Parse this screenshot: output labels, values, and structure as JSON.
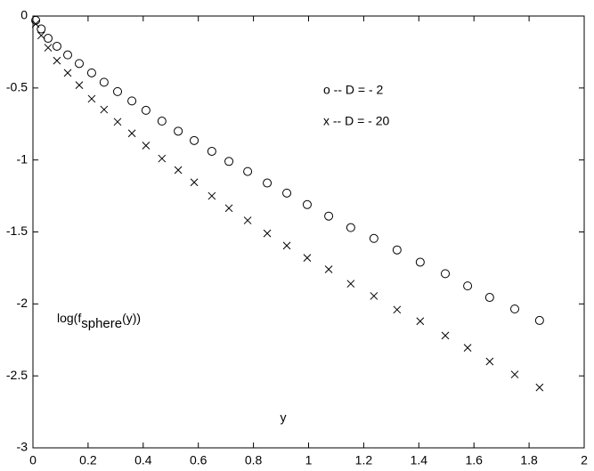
{
  "chart_data": {
    "type": "scatter",
    "x": [
      0.01,
      0.03,
      0.055,
      0.087,
      0.126,
      0.168,
      0.213,
      0.258,
      0.307,
      0.359,
      0.41,
      0.468,
      0.527,
      0.585,
      0.649,
      0.711,
      0.779,
      0.85,
      0.921,
      0.995,
      1.073,
      1.153,
      1.237,
      1.321,
      1.405,
      1.496,
      1.577,
      1.657,
      1.748,
      1.838
    ],
    "series": [
      {
        "marker": "o",
        "color": "#000000",
        "values": [
          -0.03,
          -0.09,
          -0.155,
          -0.21,
          -0.27,
          -0.33,
          -0.395,
          -0.46,
          -0.525,
          -0.59,
          -0.655,
          -0.73,
          -0.8,
          -0.865,
          -0.94,
          -1.01,
          -1.08,
          -1.16,
          -1.23,
          -1.31,
          -1.39,
          -1.47,
          -1.545,
          -1.625,
          -1.71,
          -1.79,
          -1.875,
          -1.955,
          -2.035,
          -2.115
        ]
      },
      {
        "marker": "x",
        "color": "#000000",
        "values": [
          -0.055,
          -0.135,
          -0.22,
          -0.31,
          -0.395,
          -0.48,
          -0.575,
          -0.65,
          -0.735,
          -0.815,
          -0.9,
          -0.99,
          -1.07,
          -1.155,
          -1.25,
          -1.335,
          -1.42,
          -1.51,
          -1.595,
          -1.68,
          -1.76,
          -1.86,
          -1.945,
          -2.04,
          -2.12,
          -2.22,
          -2.305,
          -2.4,
          -2.49,
          -2.58
        ]
      }
    ],
    "annotations": [
      "o -- D = - 2",
      "x -- D = - 20"
    ],
    "y_label_parts": [
      "log(f",
      "sphere",
      "(y))"
    ],
    "x_label": "y",
    "xlim": [
      0,
      2
    ],
    "xticks": [
      0,
      0.2,
      0.4,
      0.6,
      0.8,
      1,
      1.2,
      1.4,
      1.6,
      1.8,
      2
    ],
    "ylim": [
      -3,
      0
    ],
    "yticks": [
      -3,
      -2.5,
      -2,
      -1.5,
      -1,
      -0.5,
      0
    ]
  }
}
